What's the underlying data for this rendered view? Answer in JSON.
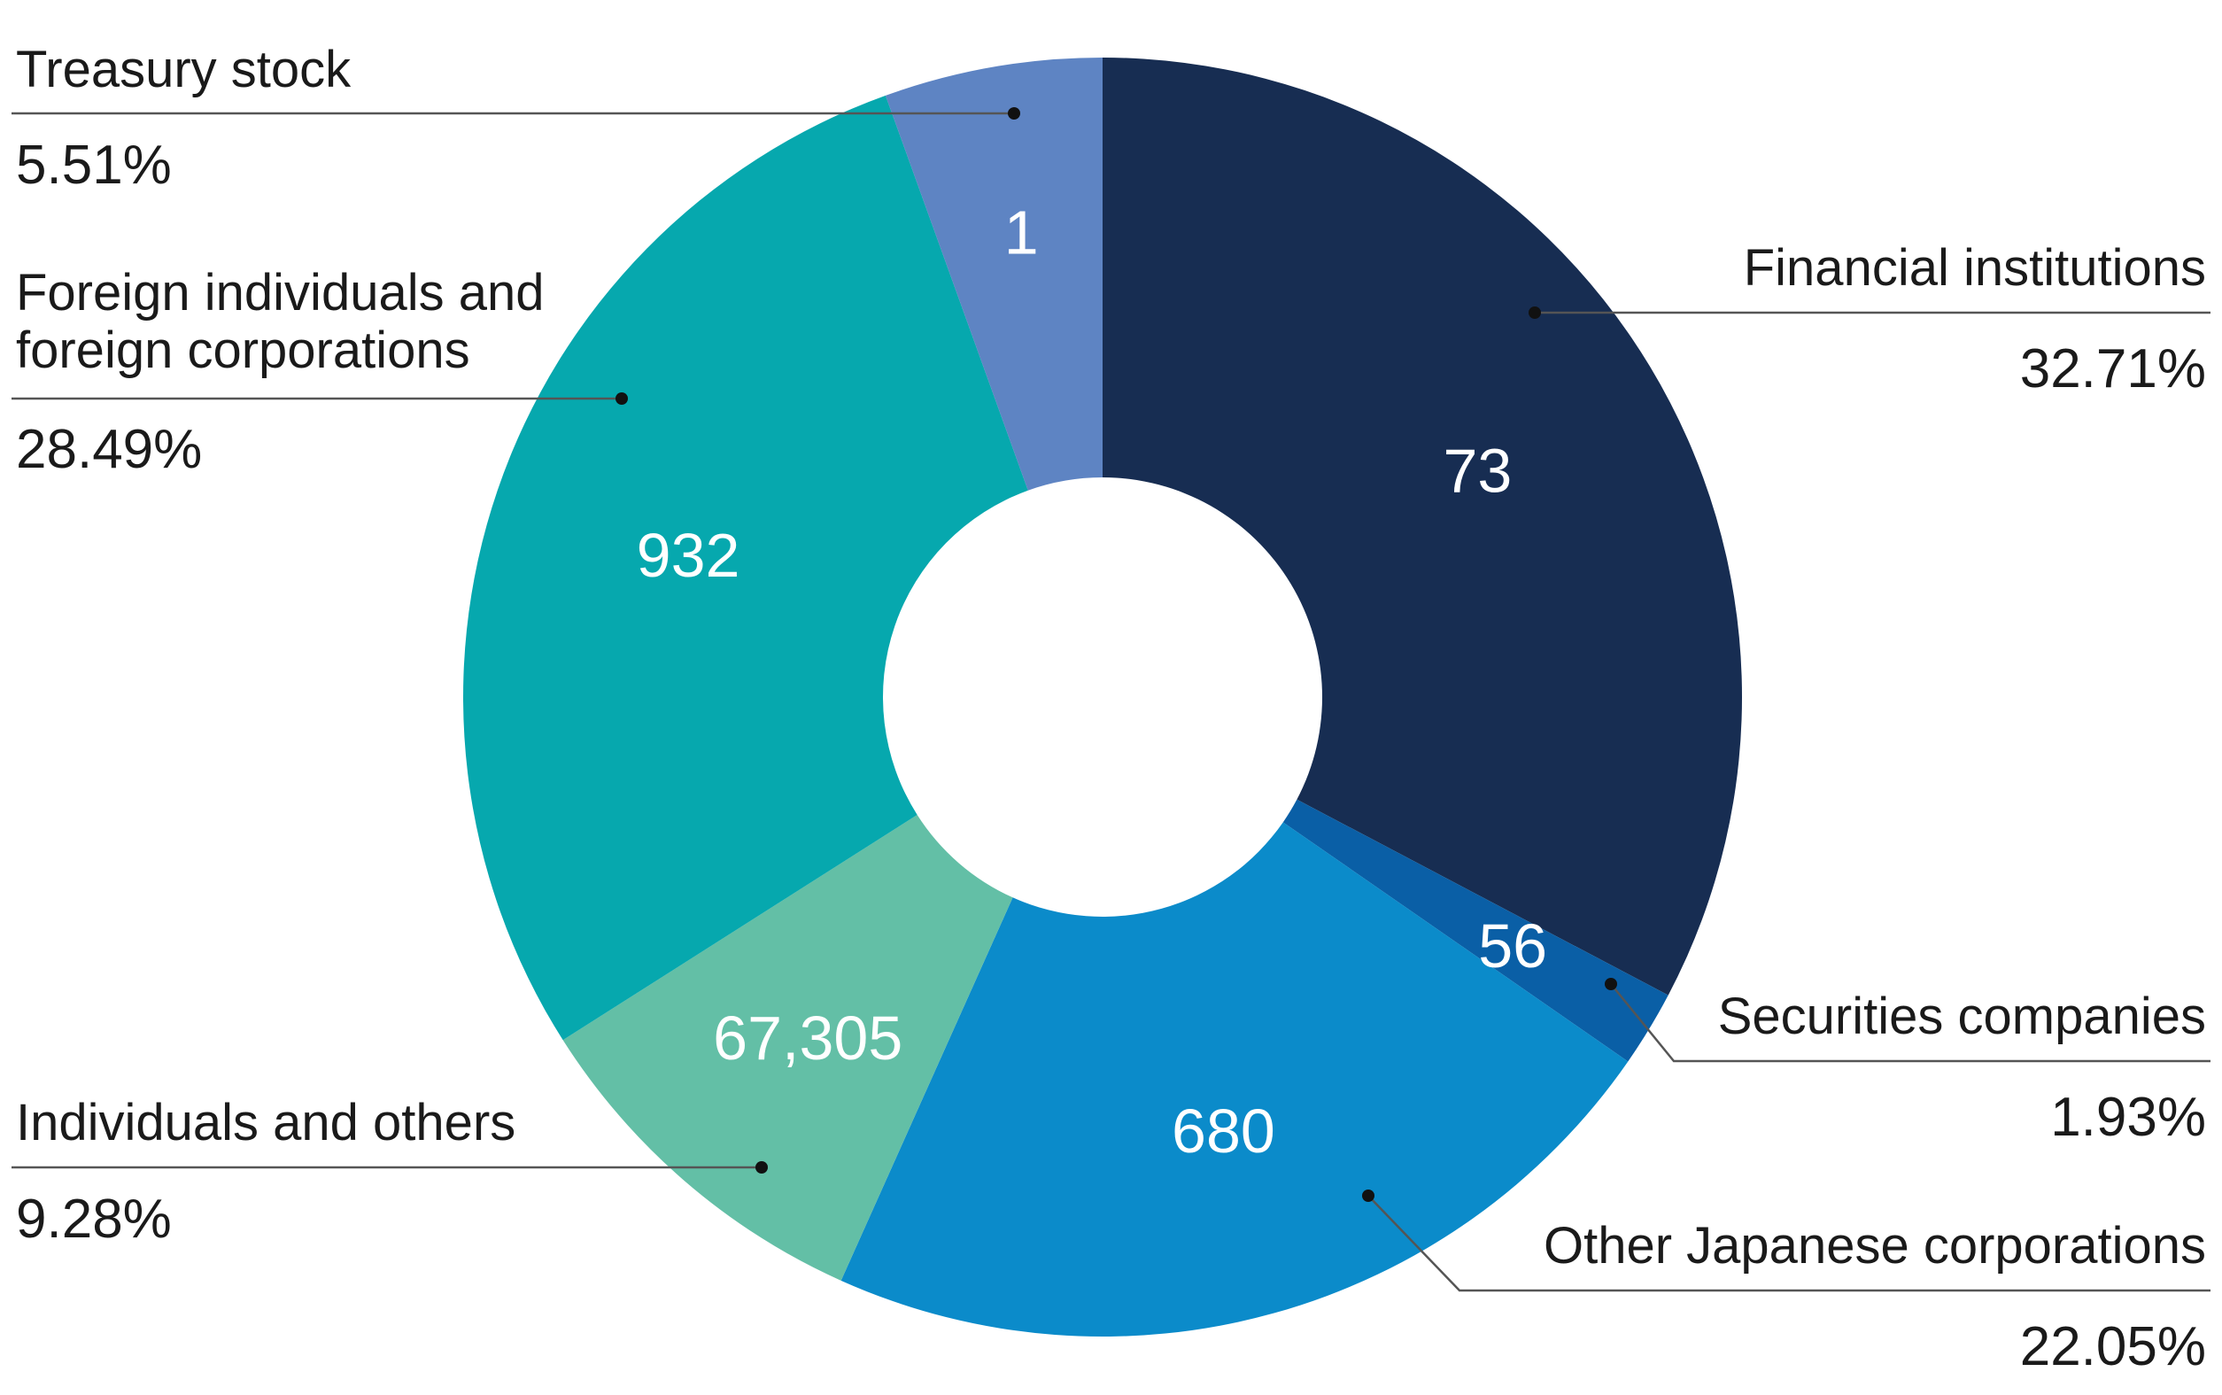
{
  "chart_data": {
    "type": "pie",
    "title": "",
    "donut": true,
    "legend": "callout labels outside ring",
    "slices": [
      {
        "category": "Financial institutions",
        "percent": 32.71,
        "label_pct": "32.71%",
        "count": "73",
        "color": "#172d52"
      },
      {
        "category": "Securities companies",
        "percent": 1.93,
        "label_pct": "1.93%",
        "count": "56",
        "color": "#0a5fa6"
      },
      {
        "category": "Other Japanese corporations",
        "percent": 22.05,
        "label_pct": "22.05%",
        "count": "680",
        "color": "#0b8bca"
      },
      {
        "category": "Individuals and others",
        "percent": 9.28,
        "label_pct": "9.28%",
        "count": "67,305",
        "color": "#63bfa6"
      },
      {
        "category": "Foreign individuals and foreign corporations",
        "percent": 28.49,
        "label_pct": "28.49%",
        "count": "932",
        "color": "#06a8ae"
      },
      {
        "category": "Treasury stock",
        "percent": 5.51,
        "label_pct": "5.51%",
        "count": "1",
        "color": "#5e84c3"
      }
    ]
  },
  "labels": {
    "financial": {
      "line1": "Financial institutions",
      "pct": "32.71%"
    },
    "securities": {
      "line1": "Securities companies",
      "pct": "1.93%"
    },
    "other_jp": {
      "line1": "Other Japanese corporations",
      "pct": "22.05%"
    },
    "individuals": {
      "line1": "Individuals and others",
      "pct": "9.28%"
    },
    "foreign": {
      "line1": "Foreign individuals and",
      "line2": "foreign corporations",
      "pct": "28.49%"
    },
    "treasury": {
      "line1": "Treasury stock",
      "pct": "5.51%"
    }
  }
}
